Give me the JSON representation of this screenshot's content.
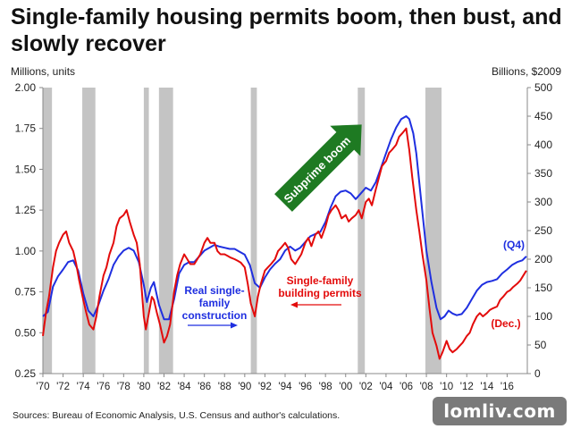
{
  "title": "Single-family housing permits boom, then bust, and slowly recover",
  "source": "Sources: Bureau of Economic Analysis, U.S. Census and author's calculations.",
  "watermark": "lomliv.com",
  "colors": {
    "blue": "#1f2fe0",
    "red": "#e30b0b",
    "recession": "#c4c4c4",
    "arrow": "#1e7a22"
  },
  "chart_data": {
    "type": "line",
    "x_range": [
      1970,
      2018.0
    ],
    "ylabel_left": "Millions, units",
    "ylabel_right": "Billions, $2009",
    "y_left_range": [
      0.25,
      2.0
    ],
    "y_right_range": [
      0,
      500
    ],
    "y_left_ticks": [
      "0.25",
      "0.50",
      "0.75",
      "1.00",
      "1.25",
      "1.50",
      "1.75",
      "2.00"
    ],
    "y_right_ticks": [
      "0",
      "50",
      "100",
      "150",
      "200",
      "250",
      "300",
      "350",
      "400",
      "450",
      "500"
    ],
    "x_ticks": [
      "'70",
      "'72",
      "'74",
      "'76",
      "'78",
      "'80",
      "'82",
      "'84",
      "'86",
      "'88",
      "'90",
      "'92",
      "'94",
      "'96",
      "'98",
      "'00",
      "'02",
      "'04",
      "'06",
      "'08",
      "'10",
      "'12",
      "'14",
      "'16"
    ],
    "recessions": [
      [
        1970.0,
        1970.9
      ],
      [
        1973.9,
        1975.2
      ],
      [
        1980.0,
        1980.5
      ],
      [
        1981.5,
        1982.9
      ],
      [
        1990.6,
        1991.2
      ],
      [
        2001.2,
        2001.9
      ],
      [
        2007.9,
        2009.5
      ]
    ],
    "series": [
      {
        "name": "Real single-family construction",
        "axis": "right",
        "color": "#1f2fe0",
        "x": [
          1970.0,
          1970.5,
          1971.0,
          1971.5,
          1972.0,
          1972.5,
          1973.0,
          1973.5,
          1974.0,
          1974.5,
          1975.0,
          1975.5,
          1976.0,
          1976.5,
          1977.0,
          1977.5,
          1978.0,
          1978.5,
          1979.0,
          1979.5,
          1980.0,
          1980.3,
          1980.7,
          1981.0,
          1981.5,
          1982.0,
          1982.5,
          1983.0,
          1983.5,
          1984.0,
          1984.5,
          1985.0,
          1985.5,
          1986.0,
          1986.5,
          1987.0,
          1987.5,
          1988.0,
          1988.5,
          1989.0,
          1989.5,
          1990.0,
          1990.5,
          1991.0,
          1991.5,
          1992.0,
          1992.5,
          1993.0,
          1993.5,
          1994.0,
          1994.5,
          1995.0,
          1995.5,
          1996.0,
          1996.5,
          1997.0,
          1997.5,
          1998.0,
          1998.5,
          1999.0,
          1999.5,
          2000.0,
          2000.5,
          2001.0,
          2001.5,
          2002.0,
          2002.5,
          2003.0,
          2003.5,
          2004.0,
          2004.5,
          2005.0,
          2005.5,
          2006.0,
          2006.3,
          2006.7,
          2007.0,
          2007.5,
          2008.0,
          2008.5,
          2009.0,
          2009.4,
          2009.8,
          2010.2,
          2010.6,
          2011.0,
          2011.5,
          2012.0,
          2012.5,
          2013.0,
          2013.5,
          2014.0,
          2014.5,
          2015.0,
          2015.5,
          2016.0,
          2016.5,
          2017.0,
          2017.5,
          2017.9
        ],
        "values": [
          100,
          108,
          152,
          170,
          182,
          195,
          198,
          180,
          140,
          110,
          100,
          120,
          145,
          165,
          190,
          205,
          215,
          220,
          215,
          195,
          155,
          125,
          150,
          160,
          120,
          95,
          95,
          130,
          175,
          190,
          195,
          195,
          205,
          215,
          220,
          225,
          222,
          220,
          218,
          218,
          213,
          208,
          190,
          158,
          150,
          168,
          182,
          192,
          200,
          215,
          222,
          215,
          220,
          230,
          240,
          244,
          248,
          265,
          290,
          310,
          318,
          320,
          315,
          305,
          315,
          325,
          320,
          335,
          360,
          385,
          410,
          430,
          445,
          450,
          445,
          420,
          385,
          300,
          215,
          160,
          115,
          95,
          100,
          110,
          105,
          102,
          104,
          115,
          130,
          145,
          155,
          160,
          162,
          165,
          175,
          182,
          190,
          195,
          198,
          205
        ]
      },
      {
        "name": "Single-family building permits",
        "axis": "left",
        "color": "#e30b0b",
        "x": [
          1970.0,
          1970.3,
          1970.6,
          1971.0,
          1971.3,
          1971.6,
          1972.0,
          1972.3,
          1972.6,
          1973.0,
          1973.3,
          1973.6,
          1974.0,
          1974.3,
          1974.6,
          1975.0,
          1975.3,
          1975.6,
          1976.0,
          1976.3,
          1976.6,
          1977.0,
          1977.3,
          1977.6,
          1978.0,
          1978.3,
          1978.6,
          1979.0,
          1979.3,
          1979.6,
          1980.0,
          1980.2,
          1980.5,
          1980.8,
          1981.0,
          1981.3,
          1981.6,
          1982.0,
          1982.3,
          1982.6,
          1983.0,
          1983.3,
          1983.6,
          1984.0,
          1984.3,
          1984.6,
          1985.0,
          1985.3,
          1985.6,
          1986.0,
          1986.3,
          1986.6,
          1987.0,
          1987.3,
          1987.6,
          1988.0,
          1988.3,
          1988.6,
          1989.0,
          1989.3,
          1989.6,
          1990.0,
          1990.3,
          1990.6,
          1991.0,
          1991.3,
          1991.6,
          1992.0,
          1992.3,
          1992.6,
          1993.0,
          1993.3,
          1993.6,
          1994.0,
          1994.3,
          1994.6,
          1995.0,
          1995.3,
          1995.6,
          1996.0,
          1996.3,
          1996.6,
          1997.0,
          1997.3,
          1997.6,
          1998.0,
          1998.3,
          1998.6,
          1999.0,
          1999.3,
          1999.6,
          2000.0,
          2000.3,
          2000.6,
          2001.0,
          2001.3,
          2001.6,
          2002.0,
          2002.3,
          2002.6,
          2003.0,
          2003.3,
          2003.6,
          2004.0,
          2004.3,
          2004.6,
          2005.0,
          2005.3,
          2005.6,
          2006.0,
          2006.3,
          2006.6,
          2007.0,
          2007.3,
          2007.6,
          2008.0,
          2008.3,
          2008.6,
          2009.0,
          2009.3,
          2009.6,
          2010.0,
          2010.3,
          2010.6,
          2011.0,
          2011.3,
          2011.6,
          2012.0,
          2012.3,
          2012.6,
          2013.0,
          2013.3,
          2013.6,
          2014.0,
          2014.3,
          2014.6,
          2015.0,
          2015.3,
          2015.6,
          2016.0,
          2016.3,
          2016.6,
          2017.0,
          2017.3,
          2017.6,
          2017.9
        ],
        "values": [
          0.48,
          0.62,
          0.72,
          0.9,
          1.0,
          1.05,
          1.1,
          1.12,
          1.05,
          1.0,
          0.92,
          0.82,
          0.7,
          0.62,
          0.55,
          0.52,
          0.6,
          0.72,
          0.85,
          0.9,
          0.98,
          1.05,
          1.15,
          1.2,
          1.22,
          1.25,
          1.18,
          1.1,
          1.05,
          0.92,
          0.6,
          0.52,
          0.62,
          0.72,
          0.7,
          0.62,
          0.55,
          0.44,
          0.48,
          0.55,
          0.75,
          0.85,
          0.92,
          0.98,
          0.95,
          0.92,
          0.92,
          0.95,
          0.98,
          1.05,
          1.08,
          1.05,
          1.05,
          1.0,
          0.98,
          0.98,
          0.97,
          0.96,
          0.95,
          0.94,
          0.93,
          0.9,
          0.8,
          0.68,
          0.6,
          0.72,
          0.8,
          0.88,
          0.9,
          0.92,
          0.95,
          1.0,
          1.02,
          1.05,
          1.02,
          0.95,
          0.92,
          0.95,
          0.98,
          1.05,
          1.08,
          1.03,
          1.1,
          1.12,
          1.08,
          1.15,
          1.22,
          1.25,
          1.28,
          1.25,
          1.2,
          1.22,
          1.18,
          1.2,
          1.22,
          1.25,
          1.2,
          1.3,
          1.32,
          1.28,
          1.38,
          1.45,
          1.52,
          1.55,
          1.6,
          1.62,
          1.65,
          1.7,
          1.72,
          1.75,
          1.62,
          1.45,
          1.25,
          1.12,
          0.98,
          0.82,
          0.65,
          0.5,
          0.42,
          0.34,
          0.38,
          0.45,
          0.4,
          0.38,
          0.4,
          0.42,
          0.44,
          0.48,
          0.5,
          0.55,
          0.6,
          0.62,
          0.6,
          0.62,
          0.64,
          0.65,
          0.66,
          0.7,
          0.72,
          0.75,
          0.76,
          0.78,
          0.8,
          0.82,
          0.85,
          0.88
        ]
      }
    ],
    "annotations": {
      "blue_label": [
        "Real single-",
        "family",
        "construction"
      ],
      "red_label": [
        "Single-family",
        "building permits"
      ],
      "q4_label": "(Q4)",
      "dec_label": "(Dec.)",
      "boom_arrow_text": "Subprime boom"
    }
  }
}
